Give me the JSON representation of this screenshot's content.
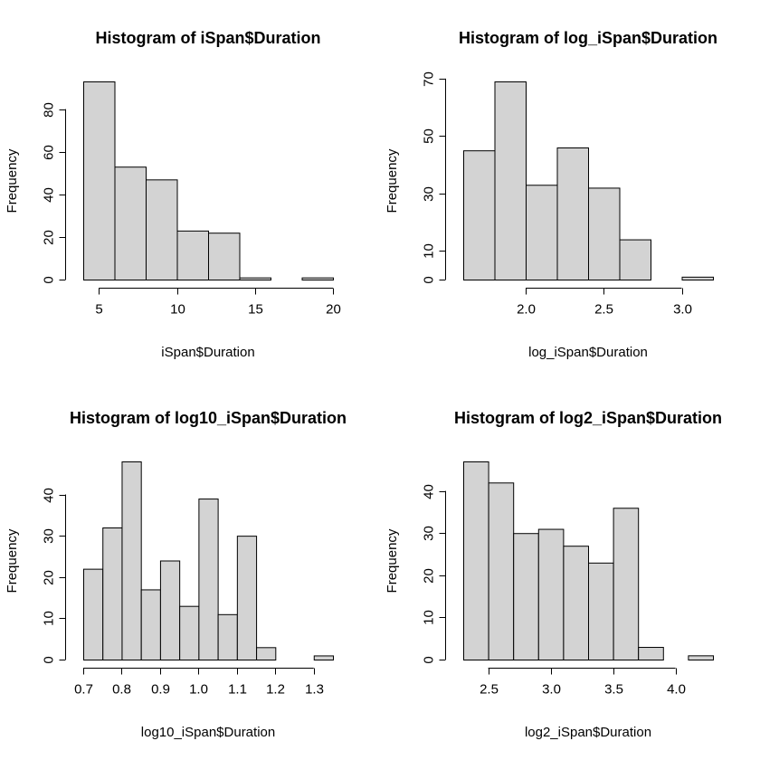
{
  "chart_data": [
    {
      "type": "bar",
      "title": "Histogram of iSpan$Duration",
      "xlabel": "iSpan$Duration",
      "ylabel": "Frequency",
      "breaks": [
        4,
        6,
        8,
        10,
        12,
        14,
        16,
        18,
        20
      ],
      "values": [
        93,
        53,
        47,
        23,
        22,
        1,
        0,
        1
      ],
      "xlim": [
        4,
        20
      ],
      "ylim": [
        0,
        93
      ],
      "xticks": [
        5,
        10,
        15,
        20
      ],
      "xtick_labels": [
        "5",
        "10",
        "15",
        "20"
      ],
      "yticks": [
        0,
        20,
        40,
        60,
        80
      ],
      "ytick_labels": [
        "0",
        "20",
        "40",
        "60",
        "80"
      ]
    },
    {
      "type": "bar",
      "title": "Histogram of log_iSpan$Duration",
      "xlabel": "log_iSpan$Duration",
      "ylabel": "Frequency",
      "breaks": [
        1.6,
        1.8,
        2.0,
        2.2,
        2.4,
        2.6,
        2.8,
        3.0,
        3.2
      ],
      "values": [
        45,
        69,
        33,
        46,
        32,
        14,
        0,
        1
      ],
      "xlim": [
        1.6,
        3.2
      ],
      "ylim": [
        0,
        69
      ],
      "xticks": [
        2.0,
        2.5,
        3.0
      ],
      "xtick_labels": [
        "2.0",
        "2.5",
        "3.0"
      ],
      "yticks": [
        0,
        10,
        30,
        50,
        70
      ],
      "ytick_labels": [
        "0",
        "10",
        "30",
        "50",
        "70"
      ]
    },
    {
      "type": "bar",
      "title": "Histogram of log10_iSpan$Duration",
      "xlabel": "log10_iSpan$Duration",
      "ylabel": "Frequency",
      "breaks": [
        0.7,
        0.75,
        0.8,
        0.85,
        0.9,
        0.95,
        1.0,
        1.05,
        1.1,
        1.15,
        1.2,
        1.25,
        1.3,
        1.35
      ],
      "values": [
        22,
        32,
        48,
        17,
        24,
        13,
        39,
        11,
        30,
        3,
        0,
        0,
        1
      ],
      "xlim": [
        0.7,
        1.35
      ],
      "ylim": [
        0,
        48
      ],
      "xticks": [
        0.7,
        0.8,
        0.9,
        1.0,
        1.1,
        1.2,
        1.3
      ],
      "xtick_labels": [
        "0.7",
        "0.8",
        "0.9",
        "1.0",
        "1.1",
        "1.2",
        "1.3"
      ],
      "yticks": [
        0,
        10,
        20,
        30,
        40
      ],
      "ytick_labels": [
        "0",
        "10",
        "20",
        "30",
        "40"
      ]
    },
    {
      "type": "bar",
      "title": "Histogram of log2_iSpan$Duration",
      "xlabel": "log2_iSpan$Duration",
      "ylabel": "Frequency",
      "breaks": [
        2.3,
        2.5,
        2.7,
        2.9,
        3.1,
        3.3,
        3.5,
        3.7,
        3.9,
        4.1,
        4.3
      ],
      "values": [
        47,
        42,
        30,
        31,
        27,
        23,
        36,
        3,
        0,
        1
      ],
      "xlim": [
        2.3,
        4.3
      ],
      "ylim": [
        0,
        47
      ],
      "xticks": [
        2.5,
        3.0,
        3.5,
        4.0
      ],
      "xtick_labels": [
        "2.5",
        "3.0",
        "3.5",
        "4.0"
      ],
      "yticks": [
        0,
        10,
        20,
        30,
        40
      ],
      "ytick_labels": [
        "0",
        "10",
        "20",
        "30",
        "40"
      ]
    }
  ]
}
